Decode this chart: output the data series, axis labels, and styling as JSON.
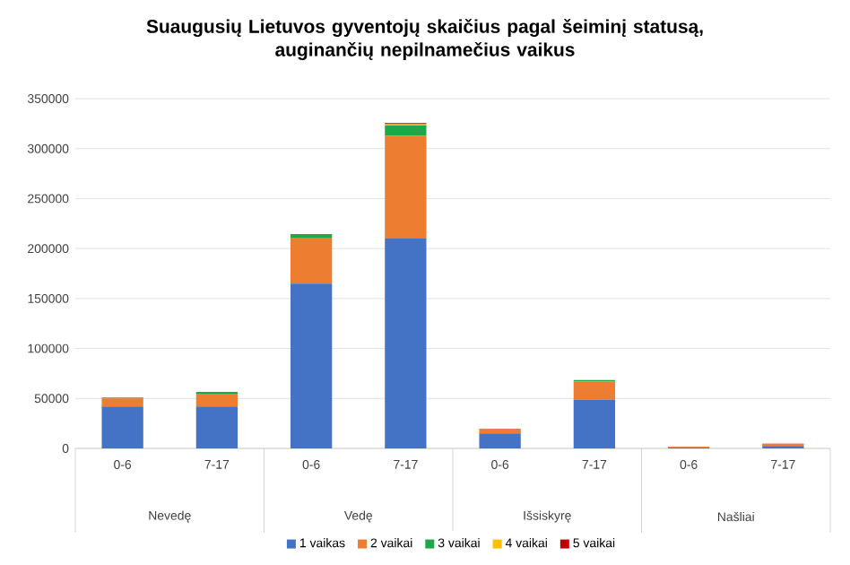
{
  "chart_data": {
    "type": "bar",
    "stacked": true,
    "title": "Suaugusių Lietuvos gyventojų skaičius pagal šeiminį statusą,\nauginančių nepilnamečius vaikus",
    "categories": [
      "0-6",
      "7-17",
      "0-6",
      "7-17",
      "0-6",
      "7-17",
      "0-6",
      "7-17"
    ],
    "annotations": [
      "Nevedę",
      "Vedę",
      "Išsiskyrę",
      "Našliai"
    ],
    "series": [
      {
        "name": "1 vaikas",
        "color": "#4472c4",
        "values": [
          42000,
          42000,
          165000,
          210000,
          15000,
          49000,
          1000,
          2500
        ]
      },
      {
        "name": "2 vaikai",
        "color": "#ed7d31",
        "values": [
          8000,
          12000,
          46000,
          103000,
          4000,
          18000,
          500,
          1500
        ]
      },
      {
        "name": "3 vaikai",
        "color": "#1ea84a",
        "values": [
          1000,
          2500,
          3500,
          10000,
          0,
          1500,
          0,
          0
        ]
      },
      {
        "name": "4 vaikai",
        "color": "#ffc000",
        "values": [
          0,
          0,
          0,
          1500,
          0,
          0,
          500,
          0
        ]
      },
      {
        "name": "5 vaikai",
        "color": "#c00000",
        "values": [
          0,
          0,
          0,
          1000,
          500,
          0,
          0,
          800
        ]
      }
    ],
    "ylim": [
      0,
      350000
    ],
    "yticks": [
      0,
      50000,
      100000,
      150000,
      200000,
      250000,
      300000,
      350000
    ],
    "grid": "y",
    "legend": "bottom"
  }
}
